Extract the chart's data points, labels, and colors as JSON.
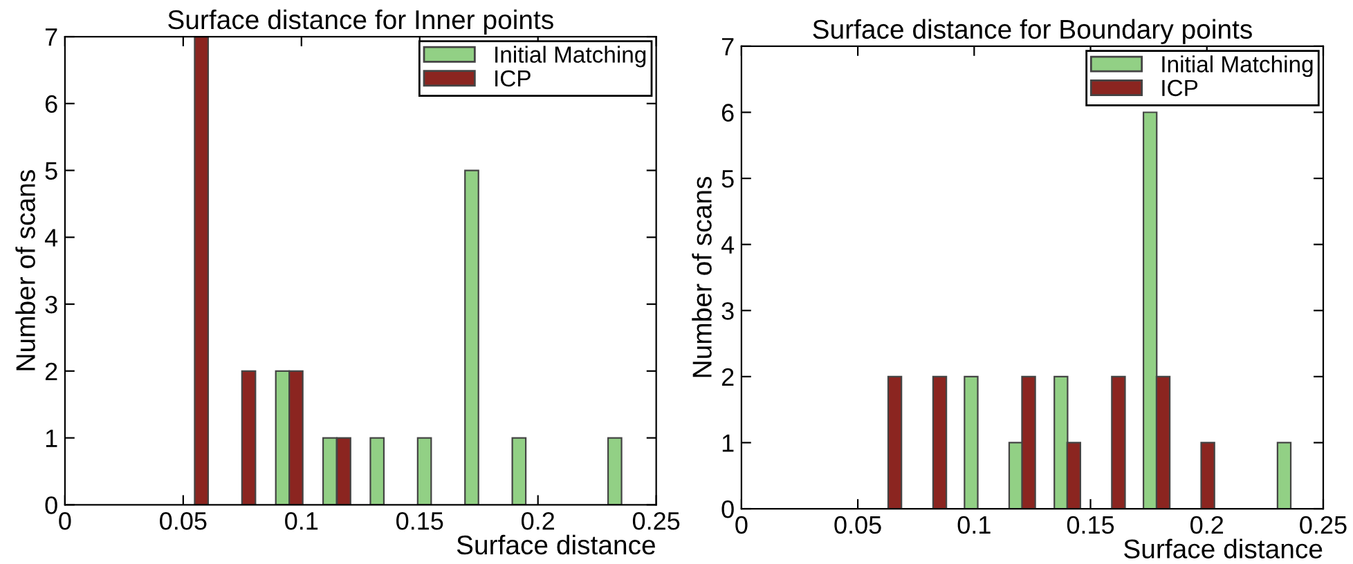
{
  "chart_data": [
    {
      "type": "bar",
      "title": "Surface distance for Inner points",
      "xlabel": "Surface distance",
      "ylabel": "Number of scans",
      "xlim": [
        0,
        0.25
      ],
      "xticks": [
        0,
        0.05,
        0.1,
        0.15,
        0.2,
        0.25
      ],
      "ylim": [
        0,
        7
      ],
      "yticks": [
        0,
        1,
        2,
        3,
        4,
        5,
        6,
        7
      ],
      "grid": false,
      "legend": "top right",
      "series": [
        {
          "name": "Initial Matching",
          "color": "#92d085",
          "x": [
            0.092,
            0.112,
            0.132,
            0.152,
            0.172,
            0.192,
            0.2325
          ],
          "values": [
            2,
            1,
            1,
            1,
            5,
            1,
            1
          ]
        },
        {
          "name": "ICP",
          "color": "#8b2520",
          "x": [
            0.0577,
            0.0777,
            0.0977,
            0.1179
          ],
          "values": [
            7,
            2,
            2,
            1
          ]
        }
      ]
    },
    {
      "type": "bar",
      "title": "Surface distance for Boundary points",
      "xlabel": "Surface distance",
      "ylabel": "Number of scans",
      "xlim": [
        0,
        0.25
      ],
      "xticks": [
        0,
        0.05,
        0.1,
        0.15,
        0.2,
        0.25
      ],
      "ylim": [
        0,
        7
      ],
      "yticks": [
        0,
        1,
        2,
        3,
        4,
        5,
        6,
        7
      ],
      "grid": false,
      "legend": "top right",
      "series": [
        {
          "name": "Initial Matching",
          "color": "#92d085",
          "x": [
            0.0987,
            0.1179,
            0.1373,
            0.1756,
            0.2332
          ],
          "values": [
            2,
            1,
            2,
            6,
            1
          ]
        },
        {
          "name": "ICP",
          "color": "#8b2520",
          "x": [
            0.0659,
            0.0852,
            0.1234,
            0.1428,
            0.162,
            0.1812,
            0.2004
          ],
          "values": [
            2,
            2,
            2,
            1,
            2,
            2,
            1
          ]
        }
      ]
    }
  ]
}
